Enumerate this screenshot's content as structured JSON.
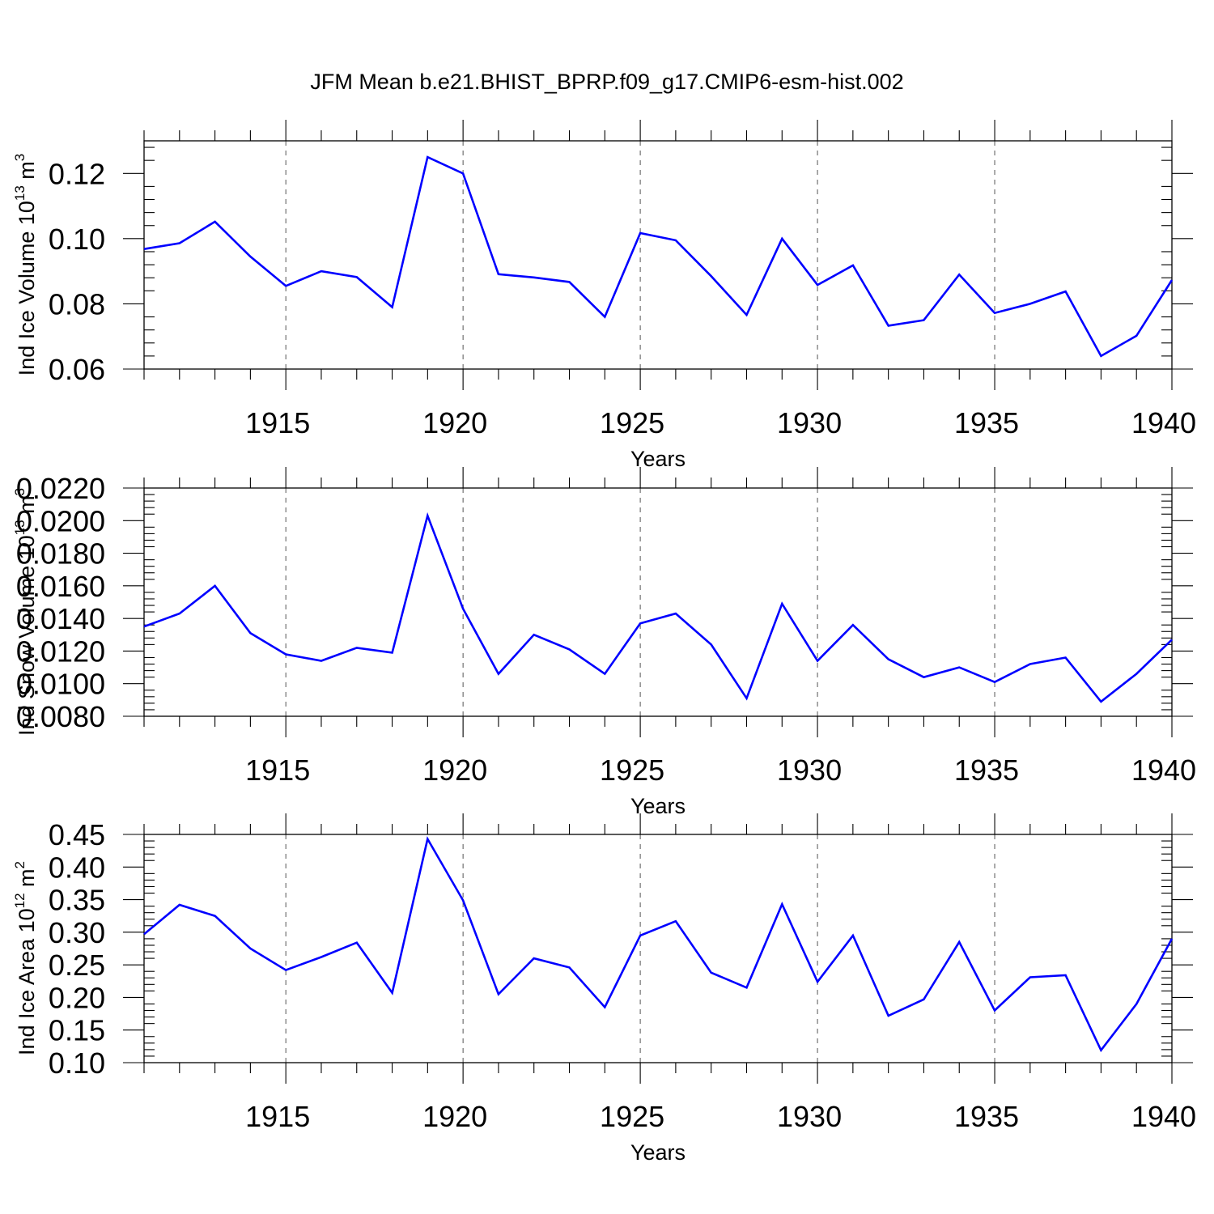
{
  "title": "JFM Mean b.e21.BHIST_BPRP.f09_g17.CMIP6-esm-hist.002",
  "line_color": "#0000ff",
  "chart_data": [
    {
      "type": "line",
      "xlabel": "Years",
      "ylabel": "Ind Ice Volume 10",
      "ylabel_exp": "13",
      "ylabel_unit": " m",
      "ylabel_unit_exp": "3",
      "xlim": [
        1911,
        1940
      ],
      "ylim": [
        0.06,
        0.13
      ],
      "yticks": [
        "0.06",
        "0.08",
        "0.10",
        "0.12"
      ],
      "ytick_values": [
        0.06,
        0.08,
        0.1,
        0.12
      ],
      "xticks": [
        "1915",
        "1920",
        "1925",
        "1930",
        "1935",
        "1940"
      ],
      "xtick_values": [
        1915,
        1920,
        1925,
        1930,
        1935,
        1940
      ],
      "x": [
        1911,
        1912,
        1913,
        1914,
        1915,
        1916,
        1917,
        1918,
        1919,
        1920,
        1921,
        1922,
        1923,
        1924,
        1925,
        1926,
        1927,
        1928,
        1929,
        1930,
        1931,
        1932,
        1933,
        1934,
        1935,
        1936,
        1937,
        1938,
        1939,
        1940
      ],
      "values": [
        0.0968,
        0.0986,
        0.1052,
        0.0945,
        0.0855,
        0.09,
        0.0882,
        0.079,
        0.125,
        0.12,
        0.0891,
        0.0881,
        0.0867,
        0.076,
        0.1017,
        0.0995,
        0.0885,
        0.0766,
        0.1,
        0.0858,
        0.0918,
        0.0733,
        0.075,
        0.089,
        0.0772,
        0.08,
        0.0838,
        0.064,
        0.0702,
        0.0873
      ],
      "grid": "vertical dashed at major x ticks"
    },
    {
      "type": "line",
      "xlabel": "Years",
      "ylabel": "Ind Snow Volume 10",
      "ylabel_exp": "13",
      "ylabel_unit": " m",
      "ylabel_unit_exp": "3",
      "xlim": [
        1911,
        1940
      ],
      "ylim": [
        0.008,
        0.022
      ],
      "yticks": [
        "0.0080",
        "0.0100",
        "0.0120",
        "0.0140",
        "0.0160",
        "0.0180",
        "0.0200",
        "0.0220"
      ],
      "ytick_values": [
        0.008,
        0.01,
        0.012,
        0.014,
        0.016,
        0.018,
        0.02,
        0.022
      ],
      "xticks": [
        "1915",
        "1920",
        "1925",
        "1930",
        "1935",
        "1940"
      ],
      "xtick_values": [
        1915,
        1920,
        1925,
        1930,
        1935,
        1940
      ],
      "x": [
        1911,
        1912,
        1913,
        1914,
        1915,
        1916,
        1917,
        1918,
        1919,
        1920,
        1921,
        1922,
        1923,
        1924,
        1925,
        1926,
        1927,
        1928,
        1929,
        1930,
        1931,
        1932,
        1933,
        1934,
        1935,
        1936,
        1937,
        1938,
        1939,
        1940
      ],
      "values": [
        0.0135,
        0.0143,
        0.016,
        0.0131,
        0.0118,
        0.0114,
        0.0122,
        0.0119,
        0.0203,
        0.0146,
        0.0106,
        0.013,
        0.0121,
        0.0106,
        0.0137,
        0.0143,
        0.0124,
        0.0091,
        0.0149,
        0.0114,
        0.0136,
        0.0115,
        0.0104,
        0.011,
        0.0101,
        0.0112,
        0.0116,
        0.0089,
        0.0106,
        0.0127
      ],
      "grid": "vertical dashed at major x ticks"
    },
    {
      "type": "line",
      "xlabel": "Years",
      "ylabel": "Ind Ice Area 10",
      "ylabel_exp": "12",
      "ylabel_unit": " m",
      "ylabel_unit_exp": "2",
      "xlim": [
        1911,
        1940
      ],
      "ylim": [
        0.1,
        0.45
      ],
      "yticks": [
        "0.10",
        "0.15",
        "0.20",
        "0.25",
        "0.30",
        "0.35",
        "0.40",
        "0.45"
      ],
      "ytick_values": [
        0.1,
        0.15,
        0.2,
        0.25,
        0.3,
        0.35,
        0.4,
        0.45
      ],
      "xticks": [
        "1915",
        "1920",
        "1925",
        "1930",
        "1935",
        "1940"
      ],
      "xtick_values": [
        1915,
        1920,
        1925,
        1930,
        1935,
        1940
      ],
      "x": [
        1911,
        1912,
        1913,
        1914,
        1915,
        1916,
        1917,
        1918,
        1919,
        1920,
        1921,
        1922,
        1923,
        1924,
        1925,
        1926,
        1927,
        1928,
        1929,
        1930,
        1931,
        1932,
        1933,
        1934,
        1935,
        1936,
        1937,
        1938,
        1939,
        1940
      ],
      "values": [
        0.297,
        0.342,
        0.325,
        0.275,
        0.242,
        0.262,
        0.284,
        0.207,
        0.443,
        0.349,
        0.205,
        0.26,
        0.246,
        0.185,
        0.295,
        0.317,
        0.238,
        0.215,
        0.343,
        0.224,
        0.295,
        0.172,
        0.197,
        0.285,
        0.18,
        0.231,
        0.234,
        0.119,
        0.19,
        0.29
      ],
      "grid": "vertical dashed at major x ticks"
    }
  ]
}
